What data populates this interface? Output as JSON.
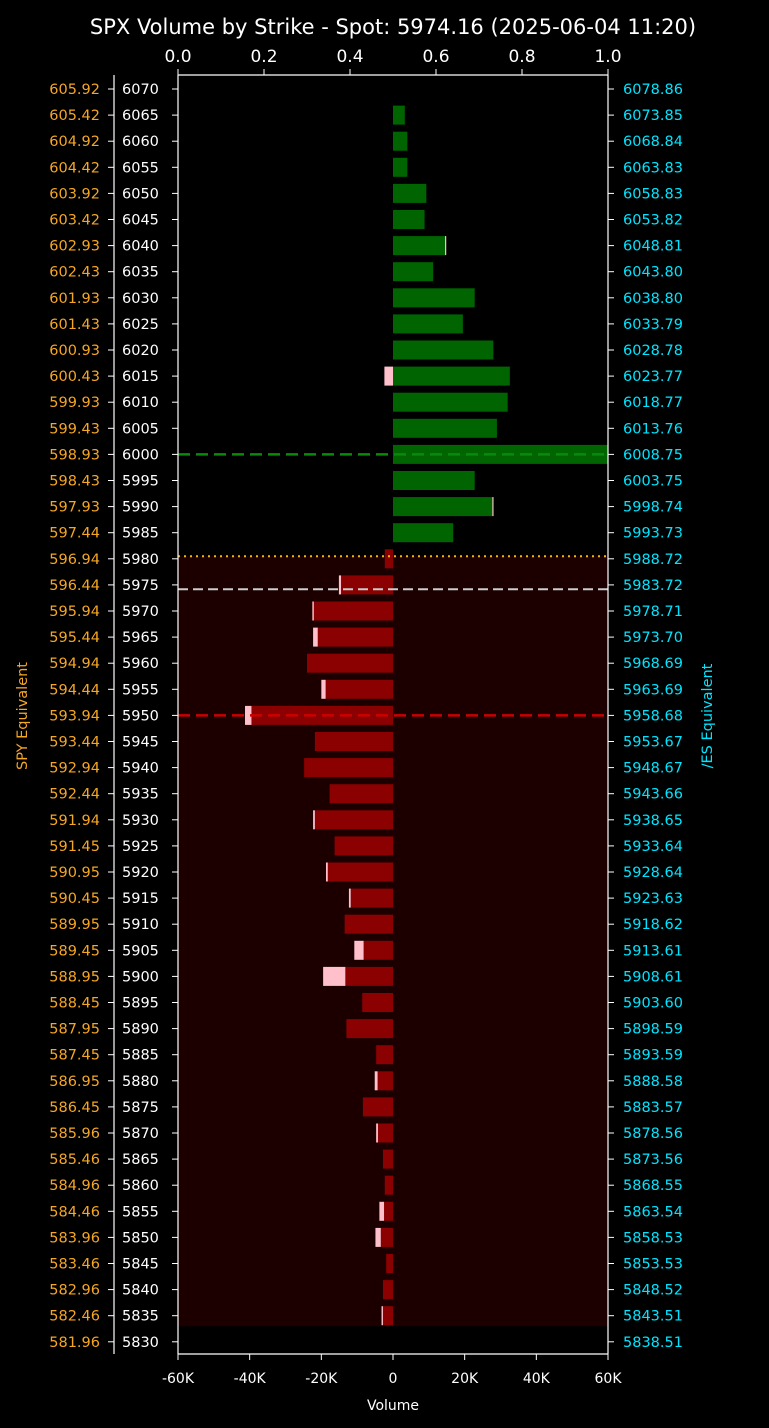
{
  "chart_data": {
    "type": "bar",
    "orientation": "horizontal",
    "title": "SPX Volume by Strike - Spot: 5974.16 (2025-06-04 11:20)",
    "spot": 5974.16,
    "xlabel": "Volume",
    "xlim": [
      -60000,
      60000
    ],
    "xticks": [
      "-60K",
      "-40K",
      "-20K",
      "0",
      "20K",
      "40K",
      "60K"
    ],
    "xtick_values": [
      -60000,
      -40000,
      -20000,
      0,
      20000,
      40000,
      60000
    ],
    "top_axis_ticks": [
      "0.0",
      "0.2",
      "0.4",
      "0.6",
      "0.8",
      "1.0"
    ],
    "left_ylabel": "SPY Equivalent",
    "right_ylabel": "/ES Equivalent",
    "reference_lines": {
      "call_wall_strike": 6000,
      "put_wall_strike": 5950,
      "dotted_line_strike": 5980.5,
      "spot_line_strike": 5974.16
    },
    "colors": {
      "calls": "#006400",
      "puts": "#8b0000",
      "accent_marker": "#ffc0cb",
      "spy_text": "#f5a623",
      "es_text": "#00e5ff",
      "below_spot_shade": "#1c0000",
      "call_wall_line": "#0a8a0a",
      "put_wall_line": "#cc0000",
      "dotted_line": "#f5b800",
      "spot_line": "#cccccc"
    },
    "strikes": [
      6070,
      6065,
      6060,
      6055,
      6050,
      6045,
      6040,
      6035,
      6030,
      6025,
      6020,
      6015,
      6010,
      6005,
      6000,
      5995,
      5990,
      5985,
      5980,
      5975,
      5970,
      5965,
      5960,
      5955,
      5950,
      5945,
      5940,
      5935,
      5930,
      5925,
      5920,
      5915,
      5910,
      5905,
      5900,
      5895,
      5890,
      5885,
      5880,
      5875,
      5870,
      5865,
      5860,
      5855,
      5850,
      5845,
      5840,
      5835,
      5830
    ],
    "spy_equivalent": [
      "605.92",
      "605.42",
      "604.92",
      "604.42",
      "603.92",
      "603.42",
      "602.93",
      "602.43",
      "601.93",
      "601.43",
      "600.93",
      "600.43",
      "599.93",
      "599.43",
      "598.93",
      "598.43",
      "597.93",
      "597.44",
      "596.94",
      "596.44",
      "595.94",
      "595.44",
      "594.94",
      "594.44",
      "593.94",
      "593.44",
      "592.94",
      "592.44",
      "591.94",
      "591.45",
      "590.95",
      "590.45",
      "589.95",
      "589.45",
      "588.95",
      "588.45",
      "587.95",
      "587.45",
      "586.95",
      "586.45",
      "585.96",
      "585.46",
      "584.96",
      "584.46",
      "583.96",
      "583.46",
      "582.96",
      "582.46",
      "581.96"
    ],
    "es_equivalent": [
      "6078.86",
      "6073.85",
      "6068.84",
      "6063.83",
      "6058.83",
      "6053.82",
      "6048.81",
      "6043.80",
      "6038.80",
      "6033.79",
      "6028.78",
      "6023.77",
      "6018.77",
      "6013.76",
      "6008.75",
      "6003.75",
      "5998.74",
      "5993.73",
      "5988.72",
      "5983.72",
      "5978.71",
      "5973.70",
      "5968.69",
      "5963.69",
      "5958.68",
      "5953.67",
      "5948.67",
      "5943.66",
      "5938.65",
      "5933.64",
      "5928.64",
      "5923.63",
      "5918.62",
      "5913.61",
      "5908.61",
      "5903.60",
      "5898.59",
      "5893.59",
      "5888.58",
      "5883.57",
      "5878.56",
      "5873.56",
      "5868.55",
      "5863.54",
      "5858.53",
      "5853.53",
      "5848.52",
      "5843.51",
      "5838.51"
    ],
    "volume": [
      0,
      3300,
      4000,
      4000,
      9300,
      8800,
      14800,
      11200,
      22800,
      19500,
      28000,
      32600,
      32000,
      29000,
      60000,
      22800,
      28000,
      16800,
      -2300,
      -14500,
      -22500,
      -21000,
      -24000,
      -18800,
      -39500,
      -21800,
      -24800,
      -17700,
      -21800,
      -16300,
      -18200,
      -11800,
      -13500,
      -8200,
      -13300,
      -8600,
      -13000,
      -4700,
      -4300,
      -8400,
      -4200,
      -2800,
      -2300,
      -2500,
      -3400,
      -1900,
      -2800,
      -2800,
      0
    ],
    "accent": [
      0,
      0,
      0,
      0,
      0,
      0,
      -400,
      0,
      0,
      0,
      0,
      -2400,
      0,
      0,
      0,
      0,
      -400,
      0,
      0,
      -600,
      400,
      -1300,
      0,
      -1200,
      -1800,
      0,
      0,
      0,
      -500,
      0,
      -500,
      -500,
      0,
      -2600,
      -6200,
      0,
      0,
      0,
      -800,
      0,
      -500,
      0,
      0,
      -1300,
      -1500,
      0,
      0,
      -400,
      0
    ]
  }
}
